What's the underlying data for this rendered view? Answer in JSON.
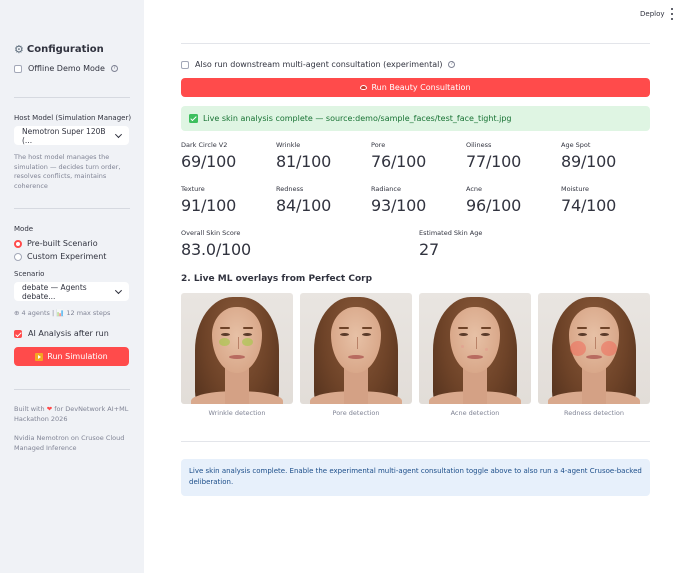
{
  "header": {
    "deploy_label": "Deploy",
    "menu_icon": "kebab-icon"
  },
  "sidebar": {
    "title": "Configuration",
    "title_icon": "gear-icon",
    "offline_demo_label": "Offline Demo Mode",
    "offline_demo_checked": false,
    "host_model_label": "Host Model (Simulation Manager)",
    "host_model_value": "Nemotron Super 120B (...",
    "host_model_help": "The host model manages the simulation — decides turn order, resolves conflicts, maintains coherence",
    "mode_label": "Mode",
    "mode_options": [
      "Pre-built Scenario",
      "Custom Experiment"
    ],
    "mode_selected": "Pre-built Scenario",
    "scenario_label": "Scenario",
    "scenario_value": "debate — Agents debate...",
    "scenario_meta": "⊕ 4 agents | 📊 12 max steps",
    "ai_analysis_label": "AI Analysis after run",
    "ai_analysis_checked": true,
    "run_sim_label": "Run Simulation",
    "footer_built": "Built with",
    "footer_built_rest": "for DevNetwork AI+ML Hackathon 2026",
    "footer_infra": "Nvidia Nemotron on Crusoe Cloud Managed Inference"
  },
  "main": {
    "consult_label": "Also run downstream multi-agent consultation (experimental)",
    "consult_checked": false,
    "run_button_label": "Run Beauty Consultation",
    "success_text": "Live skin analysis complete — source:demo/sample_faces/test_face_tight.jpg",
    "metrics": [
      {
        "label": "Dark Circle V2",
        "value": "69/100"
      },
      {
        "label": "Wrinkle",
        "value": "81/100"
      },
      {
        "label": "Pore",
        "value": "76/100"
      },
      {
        "label": "Oiliness",
        "value": "77/100"
      },
      {
        "label": "Age Spot",
        "value": "89/100"
      },
      {
        "label": "Texture",
        "value": "91/100"
      },
      {
        "label": "Redness",
        "value": "84/100"
      },
      {
        "label": "Radiance",
        "value": "93/100"
      },
      {
        "label": "Acne",
        "value": "96/100"
      },
      {
        "label": "Moisture",
        "value": "74/100"
      },
      {
        "label": "Overall Skin Score",
        "value": "83.0/100"
      },
      {
        "label": "Estimated Skin Age",
        "value": "27"
      }
    ],
    "overlays_heading": "2. Live ML overlays from Perfect Corp",
    "overlays": [
      {
        "caption": "Wrinkle detection"
      },
      {
        "caption": "Pore detection"
      },
      {
        "caption": "Acne detection"
      },
      {
        "caption": "Redness detection"
      }
    ],
    "info_text": "Live skin analysis complete. Enable the experimental multi-agent consultation toggle above to also run a 4-agent Crusoe-backed deliberation."
  }
}
